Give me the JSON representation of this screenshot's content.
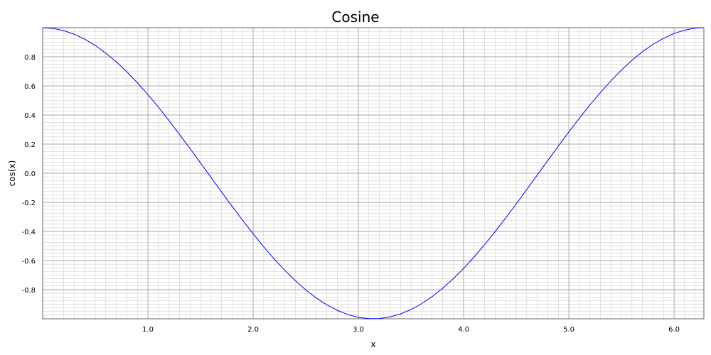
{
  "chart_data": {
    "type": "line",
    "title": "Cosine",
    "xlabel": "x",
    "ylabel": "cos(x)",
    "xlim": [
      0,
      6.2832
    ],
    "ylim": [
      -1,
      1
    ],
    "grid": true,
    "minor_grid": true,
    "x_ticks": [
      1.0,
      2.0,
      3.0,
      4.0,
      5.0,
      6.0
    ],
    "x_tick_labels": [
      "1.0",
      "2.0",
      "3.0",
      "4.0",
      "5.0",
      "6.0"
    ],
    "y_ticks": [
      0.8,
      0.6,
      0.4,
      0.2,
      0.0,
      -0.2,
      -0.4,
      -0.6,
      -0.8
    ],
    "y_tick_labels": [
      "0.8",
      "0.6",
      "0.4",
      "0.2",
      "0.0",
      "-0.2",
      "-0.4",
      "-0.6",
      "-0.8"
    ],
    "series": [
      {
        "color": "#0000ff",
        "x": [
          0.0,
          0.1,
          0.2,
          0.3,
          0.4,
          0.5,
          0.6,
          0.7,
          0.8,
          0.9,
          1.0,
          1.1,
          1.2,
          1.3,
          1.4,
          1.5,
          1.6,
          1.7,
          1.8,
          1.9,
          2.0,
          2.1,
          2.2,
          2.3,
          2.4,
          2.5,
          2.6,
          2.7,
          2.8,
          2.9,
          3.0,
          3.1,
          3.2,
          3.3,
          3.4,
          3.5,
          3.6,
          3.7,
          3.8,
          3.9,
          4.0,
          4.1,
          4.2,
          4.3,
          4.4,
          4.5,
          4.6,
          4.7,
          4.8,
          4.9,
          5.0,
          5.1,
          5.2,
          5.3,
          5.4,
          5.5,
          5.6,
          5.7,
          5.8,
          5.9,
          6.0,
          6.1,
          6.2,
          6.28
        ],
        "y": [
          1.0,
          0.995,
          0.98,
          0.955,
          0.921,
          0.878,
          0.825,
          0.765,
          0.697,
          0.622,
          0.54,
          0.454,
          0.362,
          0.267,
          0.17,
          0.071,
          -0.029,
          -0.129,
          -0.227,
          -0.323,
          -0.416,
          -0.505,
          -0.589,
          -0.666,
          -0.737,
          -0.801,
          -0.857,
          -0.904,
          -0.942,
          -0.971,
          -0.99,
          -0.999,
          -0.998,
          -0.987,
          -0.967,
          -0.936,
          -0.897,
          -0.848,
          -0.791,
          -0.726,
          -0.654,
          -0.575,
          -0.49,
          -0.401,
          -0.307,
          -0.211,
          -0.112,
          -0.012,
          0.087,
          0.187,
          0.284,
          0.378,
          0.469,
          0.554,
          0.635,
          0.709,
          0.776,
          0.835,
          0.886,
          0.927,
          0.96,
          0.983,
          0.997,
          1.0
        ]
      }
    ]
  }
}
